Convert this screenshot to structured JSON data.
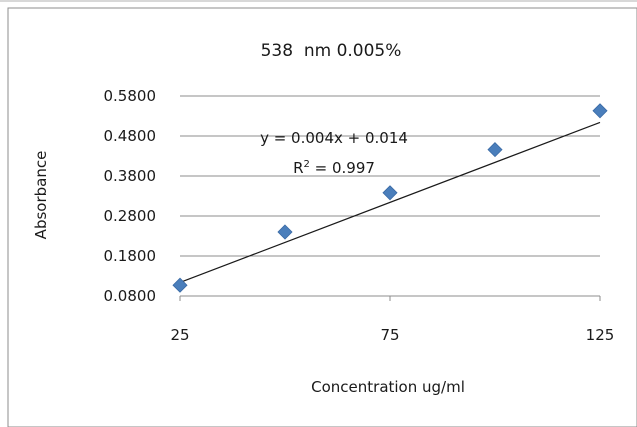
{
  "chart_data": {
    "type": "scatter",
    "title": "538  nm 0.005%",
    "xlabel": "Concentration ug/ml",
    "ylabel": "Absorbance",
    "xlim": [
      25,
      125
    ],
    "ylim": [
      0.08,
      0.58
    ],
    "x_ticks": [
      "25",
      "75",
      "125"
    ],
    "x_tick_values": [
      25,
      75,
      125
    ],
    "y_ticks": [
      "0.0800",
      "0.1800",
      "0.2800",
      "0.3800",
      "0.4800",
      "0.5800"
    ],
    "y_tick_values": [
      0.08,
      0.18,
      0.28,
      0.38,
      0.48,
      0.58
    ],
    "grid": "horizontal",
    "legend": "none",
    "series": [
      {
        "x": [
          25,
          50,
          75,
          100,
          125
        ],
        "y": [
          0.107,
          0.24,
          0.338,
          0.446,
          0.543
        ],
        "color": "#4a7ebb",
        "marker": "diamond"
      }
    ],
    "trendline": {
      "type": "linear",
      "slope": 0.004,
      "intercept": 0.014,
      "color": "#1a1a1a",
      "equation_label": "y = 0.004x + 0.014",
      "r2_label_prefix": "R",
      "r2_label_sup": "2",
      "r2_label_value": " = 0.997"
    }
  },
  "colors": {
    "gridline": "#8c8c8c",
    "frame": "#8c8c8c",
    "marker": "#4a7ebb"
  }
}
